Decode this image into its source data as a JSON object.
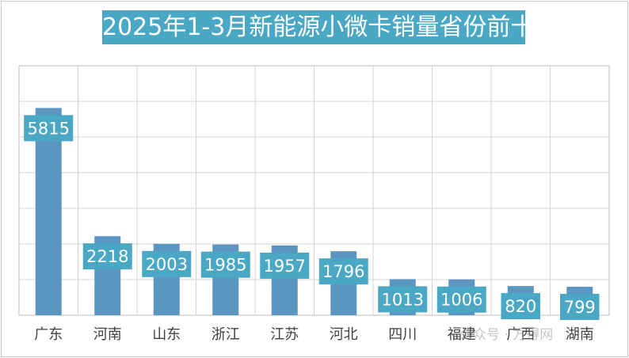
{
  "chart_data": {
    "type": "bar",
    "title": "2025年1-3月新能源小微卡销量省份前十",
    "categories": [
      "广东",
      "河南",
      "山东",
      "浙江",
      "江苏",
      "河北",
      "四川",
      "福建",
      "广西",
      "湖南"
    ],
    "values": [
      5815,
      2218,
      2003,
      1985,
      1957,
      1796,
      1013,
      1006,
      820,
      799
    ],
    "ylim": [
      0,
      7000
    ],
    "grid": true,
    "legend": "none",
    "colors": {
      "bar": "#5b96c0",
      "label_bg": "#4aa8c4",
      "title_bg": "#4aa8c4"
    }
  },
  "watermark": "公众号 · 方得网"
}
